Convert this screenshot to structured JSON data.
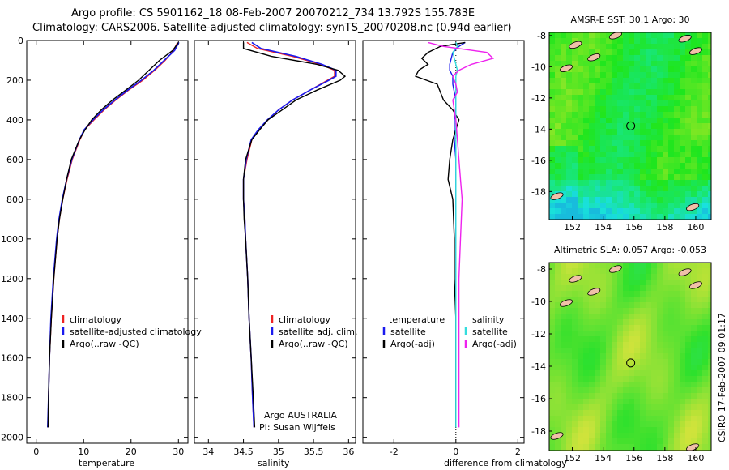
{
  "header": {
    "line1": "Argo profile: CS 5901162_18 08-Feb-2007 20070212_734 13.792S 155.783E",
    "line2": "Climatology: CARS2006. Satellite-adjusted climatology: synTS_20070208.nc (0.94d earlier)"
  },
  "side_label": "CSIRO 17-Feb-2007 09:01:17",
  "colors": {
    "climatology": "#ee2222",
    "satellite": "#1a1aee",
    "argo": "#000000",
    "salinity_satellite": "#33dddd",
    "salinity_argo": "#ee22ee",
    "land": "#f0c0a8"
  },
  "chart_data": [
    {
      "type": "line",
      "panel": "temperature",
      "xlabel": "temperature",
      "xticks": [
        0,
        10,
        20,
        30
      ],
      "xlim": [
        -2,
        32
      ],
      "yticks": [
        0,
        200,
        400,
        600,
        800,
        1000,
        1200,
        1400,
        1600,
        1800,
        2000
      ],
      "ylim": [
        2030,
        0
      ],
      "y": [
        10,
        50,
        100,
        150,
        200,
        250,
        300,
        350,
        400,
        450,
        500,
        600,
        700,
        800,
        900,
        1000,
        1200,
        1400,
        1600,
        1800,
        1950
      ],
      "series": [
        {
          "name": "climatology",
          "values": [
            29.8,
            29.0,
            27.2,
            25.0,
            22.5,
            19.5,
            16.8,
            14.3,
            12.2,
            10.2,
            9.2,
            7.6,
            6.5,
            5.6,
            4.9,
            4.4,
            3.7,
            3.2,
            2.8,
            2.6,
            2.5
          ]
        },
        {
          "name": "satellite-adjusted climatology",
          "values": [
            30.1,
            29.2,
            27.0,
            24.8,
            22.2,
            19.3,
            16.6,
            14.1,
            12.0,
            10.1,
            9.1,
            7.5,
            6.4,
            5.5,
            4.8,
            4.3,
            3.6,
            3.1,
            2.8,
            2.6,
            2.4
          ]
        },
        {
          "name": "Argo(..raw -QC)",
          "values": [
            30.0,
            28.8,
            26.0,
            23.8,
            21.6,
            18.9,
            16.1,
            13.7,
            11.7,
            10.3,
            9.1,
            7.4,
            6.4,
            5.6,
            4.9,
            4.4,
            3.7,
            3.2,
            2.8,
            2.6,
            2.5
          ]
        }
      ],
      "legend": [
        "climatology",
        "satellite-adjusted climatology",
        "Argo(..raw -QC)"
      ]
    },
    {
      "type": "line",
      "panel": "salinity",
      "xlabel": "salinity",
      "xticks": [
        34,
        34.5,
        35,
        35.5,
        36
      ],
      "xlim": [
        33.8,
        36.1
      ],
      "ylim": [
        2030,
        0
      ],
      "y": [
        10,
        40,
        80,
        120,
        150,
        180,
        200,
        250,
        300,
        350,
        400,
        450,
        500,
        600,
        700,
        800,
        900,
        1000,
        1200,
        1400,
        1600,
        1800,
        1950
      ],
      "series": [
        {
          "name": "climatology",
          "values": [
            34.55,
            34.7,
            35.2,
            35.6,
            35.8,
            35.8,
            35.7,
            35.45,
            35.2,
            35.0,
            34.85,
            34.72,
            34.62,
            34.55,
            34.5,
            34.5,
            34.52,
            34.53,
            34.56,
            34.58,
            34.61,
            34.63,
            34.65
          ]
        },
        {
          "name": "satellite adj. clim.",
          "values": [
            34.62,
            34.75,
            35.25,
            35.62,
            35.82,
            35.82,
            35.72,
            35.45,
            35.2,
            35.0,
            34.84,
            34.71,
            34.61,
            34.54,
            34.5,
            34.5,
            34.52,
            34.53,
            34.56,
            34.58,
            34.61,
            34.63,
            34.65
          ]
        },
        {
          "name": "Argo(..raw -QC)",
          "values": [
            34.5,
            34.5,
            34.9,
            35.55,
            35.85,
            35.95,
            35.88,
            35.55,
            35.25,
            35.05,
            34.85,
            34.73,
            34.62,
            34.53,
            34.5,
            34.5,
            34.51,
            34.53,
            34.56,
            34.58,
            34.61,
            34.64,
            34.66
          ]
        }
      ],
      "legend": [
        "climatology",
        "satellite adj. clim.",
        "Argo(..raw -QC)"
      ],
      "credit": [
        "Argo AUSTRALIA",
        "PI: Susan Wijffels"
      ]
    },
    {
      "type": "line",
      "panel": "difference",
      "xlabel": "difference from climatology",
      "xticks": [
        -2,
        0,
        2
      ],
      "xlim": [
        -3.0,
        2.2
      ],
      "ylim": [
        2030,
        0
      ],
      "y": [
        10,
        30,
        60,
        90,
        120,
        150,
        180,
        220,
        260,
        300,
        350,
        400,
        500,
        600,
        700,
        800,
        1000,
        1200,
        1400,
        1600,
        1800,
        1950
      ],
      "series": [
        {
          "name": "temperature satellite",
          "values": [
            0.3,
            0.1,
            -0.1,
            -0.15,
            -0.2,
            -0.2,
            -0.1,
            -0.1,
            -0.05,
            0.0,
            0.0,
            -0.05,
            -0.05,
            0.0,
            0.0,
            0.0,
            0.0,
            0.0,
            0.0,
            0.0,
            0.0,
            0.0
          ]
        },
        {
          "name": "temperature Argo(-adj)",
          "values": [
            0.3,
            -0.5,
            -0.9,
            -1.1,
            -0.9,
            -1.2,
            -1.3,
            -0.6,
            -0.5,
            -0.4,
            -0.1,
            0.1,
            -0.1,
            -0.2,
            -0.25,
            -0.1,
            -0.05,
            -0.05,
            0.0,
            0.0,
            0.0,
            0.0
          ]
        },
        {
          "name": "salinity satellite",
          "values": [
            0.0,
            0.05,
            -0.1,
            -0.05,
            0.0,
            0.05,
            0.0,
            0.0,
            0.0,
            0.0,
            0.0,
            0.0,
            0.0,
            0.0,
            0.0,
            0.0,
            0.0,
            0.0,
            0.0,
            0.0,
            0.0,
            0.0
          ]
        },
        {
          "name": "salinity Argo(-adj)",
          "values": [
            -0.9,
            -0.4,
            1.0,
            1.2,
            0.5,
            0.1,
            -0.1,
            0.0,
            0.05,
            -0.1,
            -0.05,
            0.0,
            0.05,
            0.1,
            0.15,
            0.2,
            0.15,
            0.1,
            0.1,
            0.1,
            0.1,
            0.1
          ]
        }
      ],
      "legend": [
        {
          "heading": "temperature",
          "items": [
            "satellite",
            "Argo(-adj)"
          ]
        },
        {
          "heading": "salinity",
          "items": [
            "satellite",
            "Argo(-adj)"
          ]
        }
      ]
    },
    {
      "type": "heatmap",
      "panel": "map-sst",
      "title": "AMSR-E SST: 30.1 Argo: 30",
      "xticks": [
        152,
        154,
        156,
        158,
        160
      ],
      "yticks": [
        -8,
        -10,
        -12,
        -14,
        -16,
        -18
      ],
      "xlim": [
        150.5,
        161.0
      ],
      "ylim": [
        -19.8,
        -7.8
      ],
      "marker": {
        "lon": 155.783,
        "lat": -13.792
      }
    },
    {
      "type": "heatmap",
      "panel": "map-sla",
      "title": "Altimetric SLA: 0.057 Argo: -0.053",
      "xticks": [
        152,
        154,
        156,
        158,
        160
      ],
      "yticks": [
        -8,
        -10,
        -12,
        -14,
        -16,
        -18
      ],
      "xlim": [
        150.5,
        161.0
      ],
      "ylim": [
        -19.2,
        -7.6
      ],
      "marker": {
        "lon": 155.783,
        "lat": -13.792
      }
    }
  ]
}
